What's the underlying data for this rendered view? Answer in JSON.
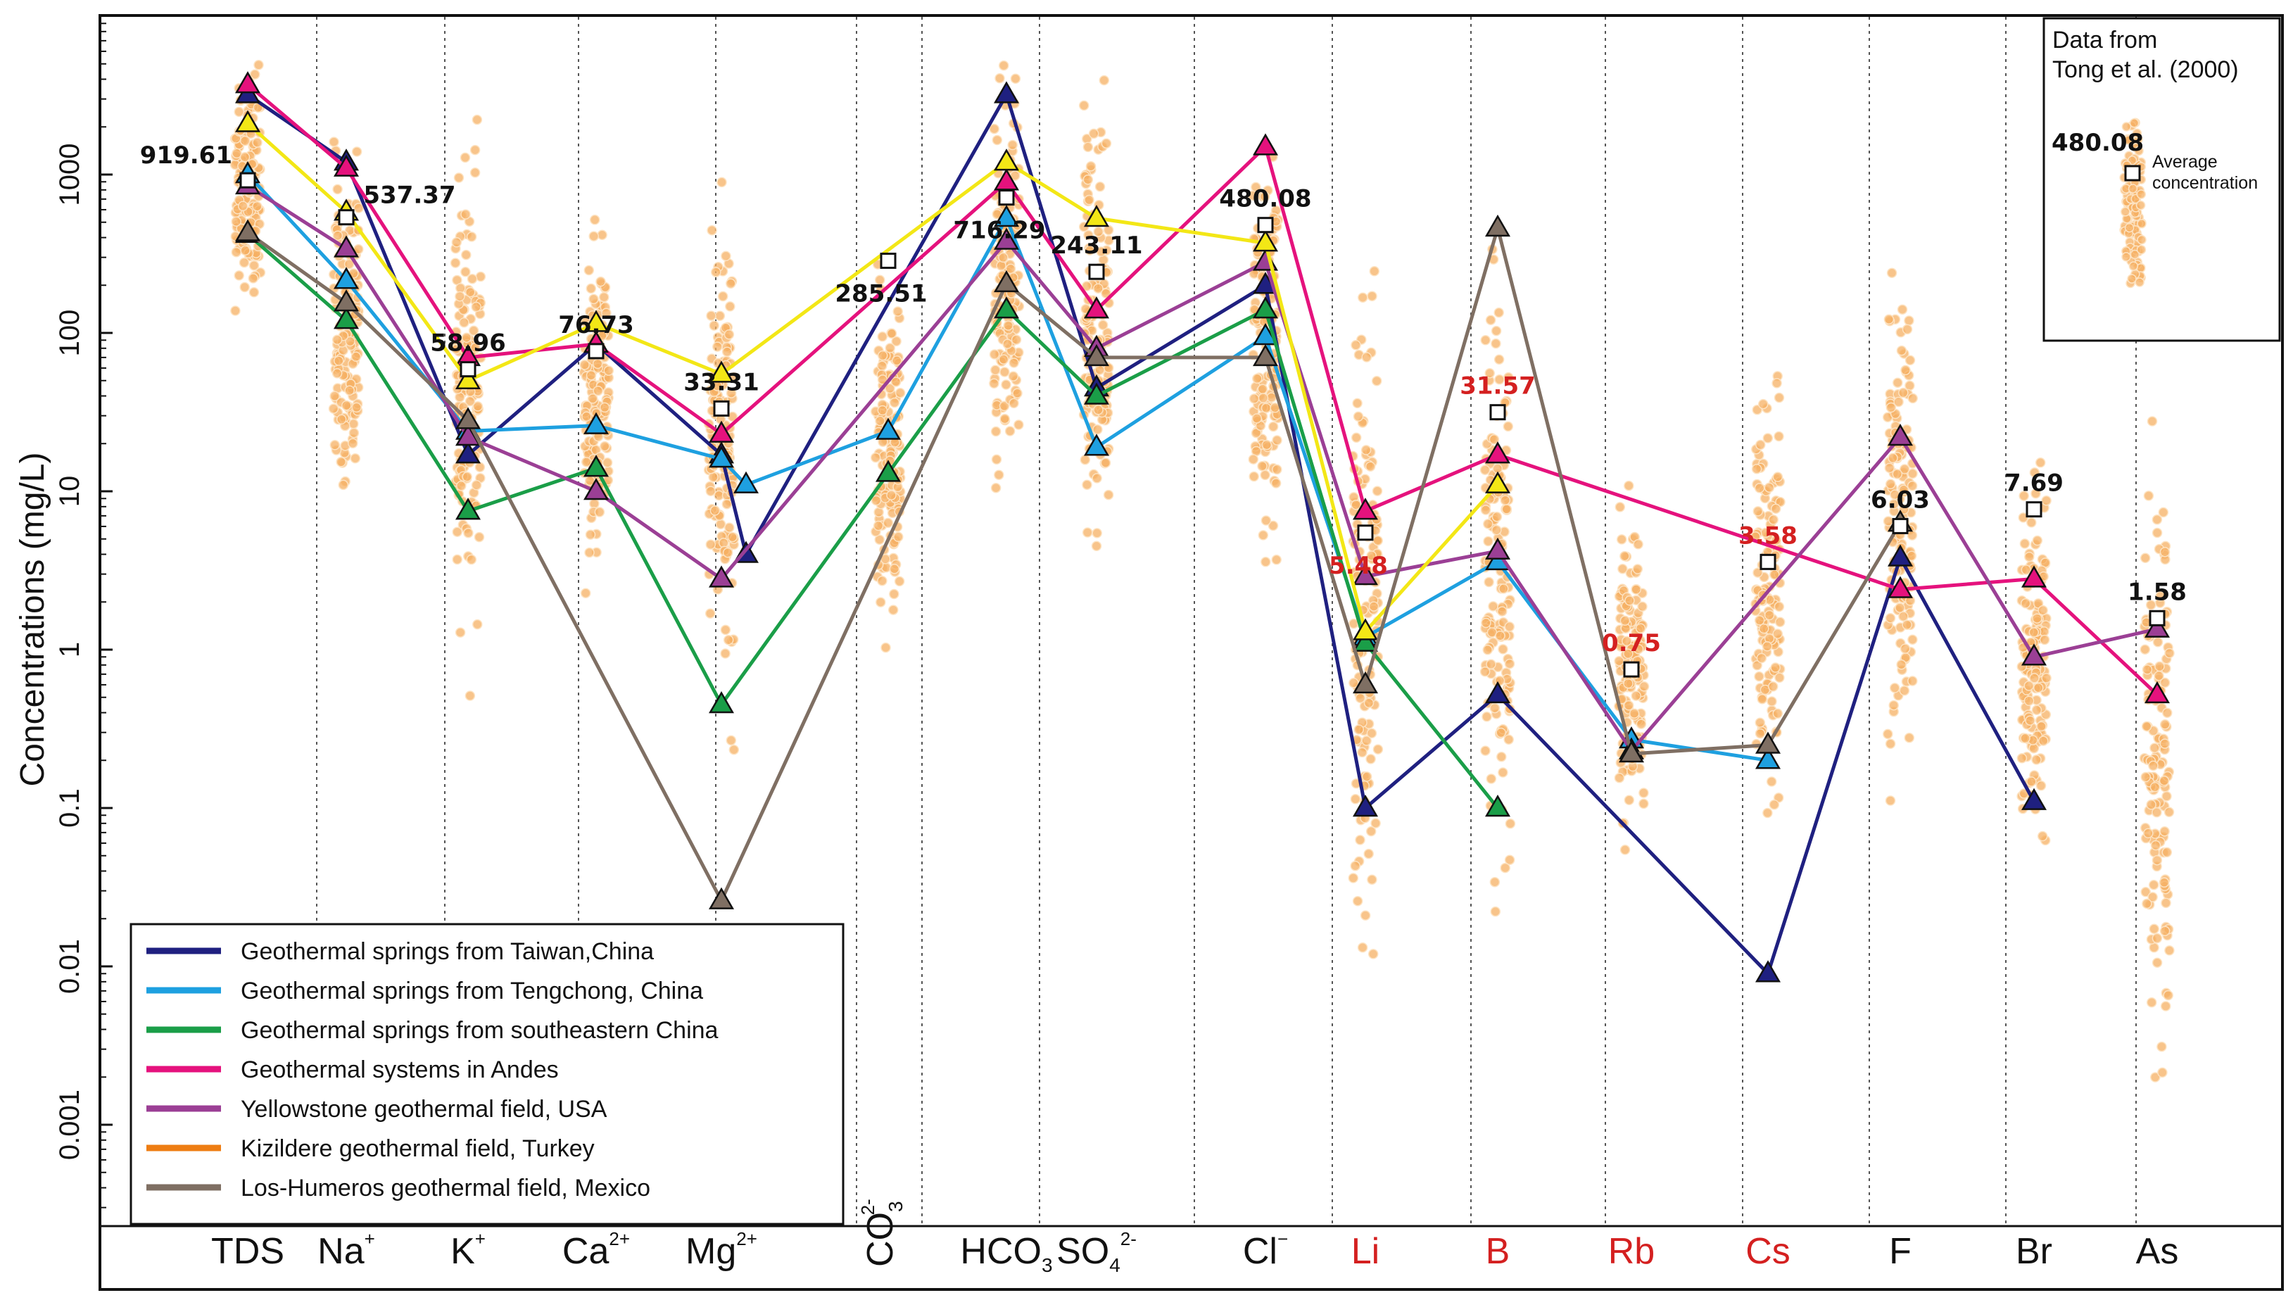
{
  "chart_data": {
    "type": "line",
    "title": "",
    "ylabel": "Concentrations (mg/L)",
    "yscale": "log",
    "ylim": [
      0.0003,
      10000
    ],
    "y_ticks": [
      {
        "value": 1000,
        "label": "1000"
      },
      {
        "value": 100,
        "label": "100"
      },
      {
        "value": 10,
        "label": "10"
      },
      {
        "value": 1,
        "label": "1"
      },
      {
        "value": 0.1,
        "label": "0.1"
      },
      {
        "value": 0.01,
        "label": "0.01"
      },
      {
        "value": 0.001,
        "label": "0.001"
      }
    ],
    "categories": [
      {
        "key": "TDS",
        "base": "TDS",
        "sup": "",
        "sub": "",
        "color": "#111111"
      },
      {
        "key": "Na",
        "base": "Na",
        "sup": "+",
        "sub": "",
        "color": "#111111"
      },
      {
        "key": "K",
        "base": "K",
        "sup": "+",
        "sub": "",
        "color": "#111111"
      },
      {
        "key": "Ca",
        "base": "Ca",
        "sup": "2+",
        "sub": "",
        "color": "#111111"
      },
      {
        "key": "Mg",
        "base": "Mg",
        "sup": "2+",
        "sub": "",
        "color": "#111111"
      },
      {
        "key": "CO3",
        "base": "CO",
        "sup": "2-",
        "sub": "3",
        "color": "#111111"
      },
      {
        "key": "HCO3",
        "base": "HCO",
        "sup": "",
        "sub": "3",
        "color": "#111111"
      },
      {
        "key": "SO4",
        "base": "SO",
        "sup": "2-",
        "sub": "4",
        "color": "#111111"
      },
      {
        "key": "Cl",
        "base": "Cl",
        "sup": "−",
        "sub": "",
        "color": "#111111"
      },
      {
        "key": "Li",
        "base": "Li",
        "sup": "",
        "sub": "",
        "color": "#d42020"
      },
      {
        "key": "B",
        "base": "B",
        "sup": "",
        "sub": "",
        "color": "#d42020"
      },
      {
        "key": "Rb",
        "base": "Rb",
        "sup": "",
        "sub": "",
        "color": "#d42020"
      },
      {
        "key": "Cs",
        "base": "Cs",
        "sup": "",
        "sub": "",
        "color": "#d42020"
      },
      {
        "key": "F",
        "base": "F",
        "sup": "",
        "sub": "",
        "color": "#111111"
      },
      {
        "key": "Br",
        "base": "Br",
        "sup": "",
        "sub": "",
        "color": "#111111"
      },
      {
        "key": "As",
        "base": "As",
        "sup": "",
        "sub": "",
        "color": "#111111"
      }
    ],
    "averages": [
      {
        "cat": 0,
        "value": 919.61,
        "label": "919.61",
        "color": "#111111",
        "label_pos": "left"
      },
      {
        "cat": 1,
        "value": 537.37,
        "label": "537.37",
        "color": "#111111",
        "label_pos": "right"
      },
      {
        "cat": 2,
        "value": 58.96,
        "label": "58.96",
        "color": "#111111",
        "label_pos": "above"
      },
      {
        "cat": 3,
        "value": 76.73,
        "label": "76.73",
        "color": "#111111",
        "label_pos": "above"
      },
      {
        "cat": 4,
        "value": 33.31,
        "label": "33.31",
        "color": "#111111",
        "label_pos": "above"
      },
      {
        "cat": 5,
        "value": 285.51,
        "label": "285.51",
        "color": "#111111",
        "label_pos": "below"
      },
      {
        "cat": 6,
        "value": 716.29,
        "label": "716.29",
        "color": "#111111",
        "label_pos": "below"
      },
      {
        "cat": 7,
        "value": 243.11,
        "label": "243.11",
        "color": "#111111",
        "label_pos": "above"
      },
      {
        "cat": 8,
        "value": 480.08,
        "label": "480.08",
        "color": "#111111",
        "label_pos": "above"
      },
      {
        "cat": 9,
        "value": 5.48,
        "label": "5.48",
        "color": "#d42020",
        "label_pos": "below"
      },
      {
        "cat": 10,
        "value": 31.57,
        "label": "31.57",
        "color": "#d42020",
        "label_pos": "above"
      },
      {
        "cat": 11,
        "value": 0.75,
        "label": "0.75",
        "color": "#d42020",
        "label_pos": "above"
      },
      {
        "cat": 12,
        "value": 3.58,
        "label": "3.58",
        "color": "#d42020",
        "label_pos": "above"
      },
      {
        "cat": 13,
        "value": 6.03,
        "label": "6.03",
        "color": "#111111",
        "label_pos": "above"
      },
      {
        "cat": 14,
        "value": 7.69,
        "label": "7.69",
        "color": "#111111",
        "label_pos": "above"
      },
      {
        "cat": 15,
        "value": 1.58,
        "label": "1.58",
        "color": "#111111",
        "label_pos": "above"
      }
    ],
    "scatter_ranges": [
      {
        "cat": 0,
        "min": 120,
        "max": 6000
      },
      {
        "cat": 1,
        "min": 4,
        "max": 2500
      },
      {
        "cat": 2,
        "min": 0.4,
        "max": 4000
      },
      {
        "cat": 3,
        "min": 2,
        "max": 800
      },
      {
        "cat": 4,
        "min": 0.2,
        "max": 1500
      },
      {
        "cat": 5,
        "min": 0.8,
        "max": 350
      },
      {
        "cat": 6,
        "min": 5,
        "max": 6000
      },
      {
        "cat": 7,
        "min": 2,
        "max": 5000
      },
      {
        "cat": 8,
        "min": 2,
        "max": 4000
      },
      {
        "cat": 9,
        "min": 0.01,
        "max": 250
      },
      {
        "cat": 10,
        "min": 0.02,
        "max": 500
      },
      {
        "cat": 11,
        "min": 0.05,
        "max": 13
      },
      {
        "cat": 12,
        "min": 0.06,
        "max": 100
      },
      {
        "cat": 13,
        "min": 0.08,
        "max": 400
      },
      {
        "cat": 14,
        "min": 0.05,
        "max": 18
      },
      {
        "cat": 15,
        "min": 0.001,
        "max": 30
      }
    ],
    "series": [
      {
        "name": "Geothermal springs from Taiwan,China",
        "color": "#1f2080",
        "points": [
          [
            0,
            3200
          ],
          [
            1,
            1200
          ],
          [
            2,
            17
          ],
          [
            3,
            85
          ],
          [
            4,
            17
          ],
          [
            4,
            4
          ],
          [
            6,
            3200
          ],
          [
            7,
            45
          ],
          [
            8,
            200
          ],
          [
            9,
            0.1
          ],
          [
            10,
            0.52
          ],
          [
            12,
            0.009
          ],
          [
            13,
            3.8
          ],
          [
            14,
            0.11
          ]
        ]
      },
      {
        "name": "Geothermal springs from Tengchong, China",
        "color": "#1ea0e0",
        "points": [
          [
            0,
            1000
          ],
          [
            1,
            215
          ],
          [
            2,
            24
          ],
          [
            3,
            26
          ],
          [
            4,
            16
          ],
          [
            4,
            11
          ],
          [
            5,
            24
          ],
          [
            6,
            530
          ],
          [
            7,
            19
          ],
          [
            8,
            95
          ],
          [
            9,
            1.2
          ],
          [
            10,
            3.6
          ],
          [
            11,
            0.27
          ],
          [
            12,
            0.2
          ]
        ]
      },
      {
        "name": "Geothermal springs  from southeastern China",
        "color": "#1a9e48",
        "points": [
          [
            0,
            420
          ],
          [
            1,
            120
          ],
          [
            2,
            7.5
          ],
          [
            3,
            14
          ],
          [
            4,
            0.45
          ],
          [
            5,
            13
          ],
          [
            6,
            140
          ],
          [
            7,
            40
          ],
          [
            8,
            140
          ],
          [
            9,
            1.1
          ],
          [
            10,
            0.1
          ]
        ]
      },
      {
        "name": "Geothermal systems in Andes",
        "color": "#e5127d",
        "points": [
          [
            0,
            3700
          ],
          [
            1,
            1100
          ],
          [
            2,
            70
          ],
          [
            3,
            85
          ],
          [
            4,
            23
          ],
          [
            6,
            900
          ],
          [
            7,
            140
          ],
          [
            8,
            1500
          ],
          [
            9,
            7.5
          ],
          [
            10,
            17
          ],
          [
            13,
            2.4
          ],
          [
            14,
            2.8
          ],
          [
            15,
            0.52
          ]
        ]
      },
      {
        "name": "Yellowstone geothermal field, USA",
        "color": "#9b3f95",
        "points": [
          [
            0,
            850
          ],
          [
            1,
            340
          ],
          [
            2,
            22
          ],
          [
            3,
            10
          ],
          [
            4,
            2.8
          ],
          [
            6,
            380
          ],
          [
            7,
            80
          ],
          [
            8,
            280
          ],
          [
            9,
            2.9
          ],
          [
            10,
            4.2
          ],
          [
            11,
            0.23
          ],
          [
            13,
            22
          ],
          [
            14,
            0.9
          ],
          [
            15,
            1.35
          ]
        ]
      },
      {
        "name": "Kizildere geothermal field, Turkey",
        "color": "#ee7d12",
        "points": [
          [
            0,
            2100
          ],
          [
            1,
            580
          ],
          [
            2,
            50
          ],
          [
            3,
            115
          ],
          [
            4,
            55
          ],
          [
            6,
            1200
          ],
          [
            7,
            530
          ],
          [
            8,
            370
          ],
          [
            9,
            1.3
          ],
          [
            10,
            11
          ]
        ]
      },
      {
        "name": "Los-Humeros geothermal field, Mexico",
        "color": "#7f6f63",
        "points": [
          [
            0,
            430
          ],
          [
            1,
            155
          ],
          [
            2,
            28
          ],
          [
            4,
            0.026
          ],
          [
            6,
            205
          ],
          [
            7,
            70
          ],
          [
            8,
            70
          ],
          [
            9,
            0.6
          ],
          [
            10,
            460
          ],
          [
            11,
            0.22
          ],
          [
            12,
            0.25
          ],
          [
            13,
            6.3
          ]
        ]
      }
    ],
    "yellow_series": {
      "color": "#f3e716"
    },
    "legend": {
      "placement": "bottom-left"
    },
    "note": {
      "lines": [
        "Data from",
        "Tong et al. (2000)"
      ],
      "value_label": "480.08",
      "marker_label_lines": [
        "Average",
        "concentration"
      ],
      "placement": "top-right"
    }
  }
}
